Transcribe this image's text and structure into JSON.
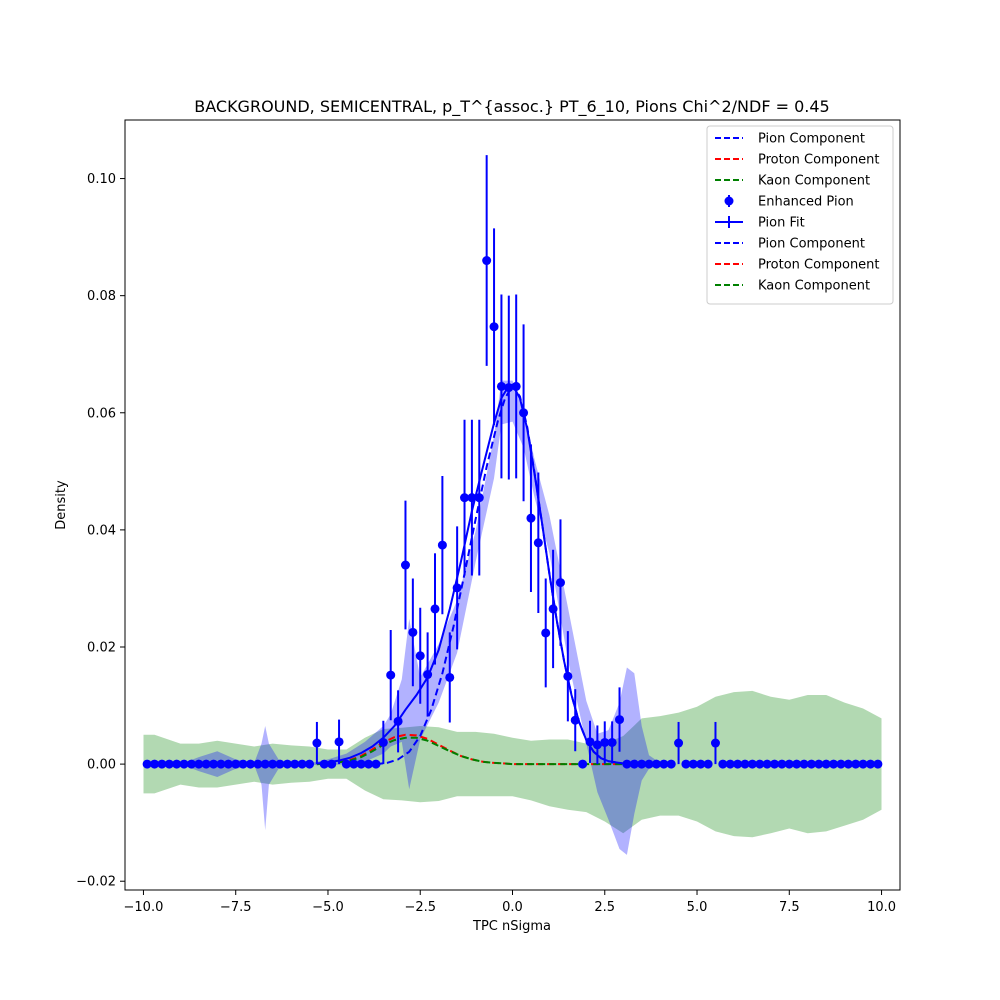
{
  "chart_data": {
    "type": "scatter",
    "title": "BACKGROUND, SEMICENTRAL, p_T^{assoc.} PT_6_10, Pions Chi^2/NDF = 0.45",
    "xlabel": "TPC nSigma",
    "ylabel": "Density",
    "xlim": [
      -10.5,
      10.5
    ],
    "ylim": [
      -0.0215,
      0.11
    ],
    "xticks": [
      -10.0,
      -7.5,
      -5.0,
      -2.5,
      0.0,
      2.5,
      5.0,
      7.5,
      10.0
    ],
    "xtick_labels": [
      "−10.0",
      "−7.5",
      "−5.0",
      "−2.5",
      "0.0",
      "2.5",
      "5.0",
      "7.5",
      "10.0"
    ],
    "yticks": [
      -0.02,
      0.0,
      0.02,
      0.04,
      0.06,
      0.08,
      0.1
    ],
    "ytick_labels": [
      "−0.02",
      "0.00",
      "0.02",
      "0.04",
      "0.06",
      "0.08",
      "0.10"
    ],
    "grid": false,
    "legend_placement": "top-right",
    "legend": [
      {
        "label": "Pion Component",
        "style": "dashed",
        "color": "#0000ff"
      },
      {
        "label": "Proton Component",
        "style": "dashed",
        "color": "#ff0000"
      },
      {
        "label": "Kaon Component",
        "style": "dashed",
        "color": "#008000"
      },
      {
        "label": "Enhanced Pion",
        "style": "errorbar-marker",
        "color": "#0000ff"
      },
      {
        "label": "Pion Fit",
        "style": "line-errorbar",
        "color": "#0000ff"
      },
      {
        "label": "Pion Component",
        "style": "dashed",
        "color": "#0000ff"
      },
      {
        "label": "Proton Component",
        "style": "dashed",
        "color": "#ff0000"
      },
      {
        "label": "Kaon Component",
        "style": "dashed",
        "color": "#008000"
      }
    ],
    "colors": {
      "pion": "#0000ff",
      "proton": "#ff0000",
      "kaon": "#008000",
      "pion_band": "#0000ff",
      "kaon_band": "#008000"
    },
    "enhanced_pion": {
      "name": "Enhanced Pion",
      "x": [
        -9.9,
        -9.7,
        -9.5,
        -9.3,
        -9.1,
        -8.9,
        -8.7,
        -8.5,
        -8.3,
        -8.1,
        -7.9,
        -7.7,
        -7.5,
        -7.3,
        -7.1,
        -6.9,
        -6.7,
        -6.5,
        -6.3,
        -6.1,
        -5.9,
        -5.7,
        -5.5,
        -5.3,
        -5.1,
        -4.9,
        -4.7,
        -4.5,
        -4.3,
        -4.1,
        -3.9,
        -3.7,
        -3.5,
        -3.3,
        -3.1,
        -2.9,
        -2.7,
        -2.5,
        -2.3,
        -2.1,
        -1.9,
        -1.7,
        -1.5,
        -1.3,
        -1.1,
        -0.9,
        -0.7,
        -0.5,
        -0.3,
        -0.1,
        0.1,
        0.3,
        0.5,
        0.7,
        0.9,
        1.1,
        1.3,
        1.5,
        1.7,
        1.9,
        2.1,
        2.3,
        2.5,
        2.7,
        2.9,
        3.1,
        3.3,
        3.5,
        3.7,
        3.9,
        4.1,
        4.3,
        4.5,
        4.7,
        4.9,
        5.1,
        5.3,
        5.5,
        5.7,
        5.9,
        6.1,
        6.3,
        6.5,
        6.7,
        6.9,
        7.1,
        7.3,
        7.5,
        7.7,
        7.9,
        8.1,
        8.3,
        8.5,
        8.7,
        8.9,
        9.1,
        9.3,
        9.5,
        9.7,
        9.9
      ],
      "y": [
        0,
        0,
        0,
        0,
        0,
        0,
        0,
        0,
        0,
        0,
        0,
        0,
        0,
        0,
        0,
        0,
        0,
        0,
        0,
        0,
        0,
        0,
        0,
        0.0036,
        0,
        0,
        0.0038,
        0,
        0,
        0,
        0,
        0,
        0.0037,
        0.0152,
        0.0073,
        0.034,
        0.0225,
        0.0185,
        0.0153,
        0.0265,
        0.0374,
        0.0148,
        0.0301,
        0.0455,
        0.0455,
        0.0455,
        0.086,
        0.0747,
        0.0645,
        0.0643,
        0.0645,
        0.06,
        0.042,
        0.0378,
        0.0224,
        0.0265,
        0.031,
        0.015,
        0.0075,
        0,
        0.0038,
        0.0033,
        0.0037,
        0.0037,
        0.0076,
        0,
        0,
        0,
        0,
        0,
        0,
        0,
        0.0036,
        0,
        0,
        0,
        0,
        0.0036,
        0,
        0,
        0,
        0,
        0,
        0,
        0,
        0,
        0,
        0,
        0,
        0,
        0,
        0,
        0,
        0,
        0,
        0,
        0,
        0,
        0,
        0
      ],
      "yerr": [
        0,
        0,
        0,
        0,
        0,
        0,
        0,
        0,
        0,
        0,
        0,
        0,
        0,
        0,
        0,
        0,
        0,
        0,
        0,
        0,
        0,
        0,
        0,
        0.0036,
        0,
        0,
        0.0038,
        0,
        0,
        0,
        0,
        0,
        0.0037,
        0.0077,
        0.0053,
        0.011,
        0.0092,
        0.0082,
        0.0072,
        0.0095,
        0.0118,
        0.0077,
        0.0105,
        0.0133,
        0.0133,
        0.0133,
        0.018,
        0.0168,
        0.0157,
        0.0157,
        0.0157,
        0.0151,
        0.0126,
        0.012,
        0.0093,
        0.0101,
        0.0108,
        0.0077,
        0.0053,
        0,
        0.0036,
        0.0033,
        0.0036,
        0.0036,
        0.0055,
        0,
        0,
        0,
        0,
        0,
        0,
        0,
        0.0036,
        0,
        0,
        0,
        0,
        0.0036,
        0,
        0,
        0,
        0,
        0,
        0,
        0,
        0,
        0,
        0,
        0,
        0,
        0,
        0,
        0,
        0,
        0,
        0,
        0,
        0,
        0,
        0
      ]
    },
    "pion_fit": {
      "name": "Pion Fit",
      "x": [
        -5.3,
        -5.0,
        -4.7,
        -4.4,
        -4.1,
        -3.8,
        -3.5,
        -3.2,
        -2.9,
        -2.6,
        -2.3,
        -2.0,
        -1.7,
        -1.4,
        -1.1,
        -0.8,
        -0.5,
        -0.3,
        -0.1,
        0.0,
        0.2,
        0.4,
        0.6,
        0.8,
        1.0,
        1.2,
        1.4,
        1.6,
        1.8,
        2.0,
        2.2,
        2.4,
        2.6,
        3.0,
        3.3
      ],
      "y": [
        0.0001,
        0.0003,
        0.0006,
        0.0011,
        0.0019,
        0.003,
        0.0045,
        0.0065,
        0.0093,
        0.0118,
        0.0148,
        0.0195,
        0.0265,
        0.0345,
        0.0432,
        0.0508,
        0.0582,
        0.0625,
        0.0646,
        0.0648,
        0.0625,
        0.0572,
        0.0495,
        0.0412,
        0.0325,
        0.0245,
        0.0175,
        0.0118,
        0.0073,
        0.0041,
        0.0021,
        0.001,
        0.0005,
        0.0001,
        0.0
      ]
    },
    "pion_component": {
      "name": "Pion Component",
      "x": [
        -3.7,
        -3.4,
        -3.1,
        -2.8,
        -2.5,
        -2.2,
        -1.9,
        -1.6,
        -1.3,
        -1.0,
        -0.7,
        -0.4,
        -0.2,
        0.0,
        0.2,
        0.4,
        0.6,
        0.8,
        1.0,
        1.2,
        1.4,
        1.6,
        1.8,
        2.0,
        2.2,
        2.4,
        2.6,
        3.0,
        3.3
      ],
      "y": [
        0.0,
        0.0002,
        0.0008,
        0.0021,
        0.0048,
        0.0093,
        0.0155,
        0.0235,
        0.0325,
        0.0418,
        0.0508,
        0.0585,
        0.0625,
        0.0646,
        0.0628,
        0.0575,
        0.0497,
        0.0412,
        0.0325,
        0.0245,
        0.0175,
        0.0118,
        0.0073,
        0.0041,
        0.0021,
        0.001,
        0.0005,
        0.0001,
        0.0
      ]
    },
    "proton_component": {
      "name": "Proton Component",
      "x": [
        -5.3,
        -5.0,
        -4.7,
        -4.4,
        -4.1,
        -3.8,
        -3.5,
        -3.2,
        -2.9,
        -2.6,
        -2.3,
        -2.0,
        -1.7,
        -1.4,
        -1.1,
        -0.8,
        -0.5,
        -0.2,
        0.0,
        0.5,
        1.0,
        1.5,
        2.0,
        2.5,
        3.0,
        3.3
      ],
      "y": [
        0.0,
        0.0001,
        0.0003,
        0.0007,
        0.0014,
        0.0025,
        0.0037,
        0.0046,
        0.005,
        0.0049,
        0.0043,
        0.0033,
        0.0023,
        0.0014,
        0.0008,
        0.0004,
        0.0002,
        0.0001,
        0.0,
        0.0,
        0.0,
        0.0,
        0.0,
        0.0,
        0.0,
        0.0
      ]
    },
    "kaon_component": {
      "name": "Kaon Component",
      "x": [
        -5.3,
        -5.0,
        -4.7,
        -4.4,
        -4.1,
        -3.8,
        -3.5,
        -3.2,
        -2.9,
        -2.6,
        -2.3,
        -2.0,
        -1.7,
        -1.4,
        -1.1,
        -0.8,
        -0.5,
        -0.2,
        0.0,
        0.5,
        1.0,
        1.5,
        2.0,
        2.5,
        3.0,
        3.3
      ],
      "y": [
        0.0,
        0.0001,
        0.0003,
        0.0006,
        0.0012,
        0.0022,
        0.0033,
        0.0041,
        0.0045,
        0.0045,
        0.004,
        0.0031,
        0.0022,
        0.0014,
        0.0008,
        0.0004,
        0.0002,
        0.0001,
        0.0,
        0.0,
        0.0,
        0.0,
        0.0,
        0.0,
        0.0,
        0.0
      ]
    },
    "pion_fit_band": {
      "x": [
        -10.0,
        -9.0,
        -8.5,
        -8.0,
        -7.5,
        -7.0,
        -6.8,
        -6.7,
        -6.6,
        -6.3,
        -6.0,
        -5.5,
        -5.3,
        -5.0,
        -4.5,
        -4.0,
        -3.5,
        -3.3,
        -3.0,
        -2.8,
        -2.5,
        -2.0,
        -1.5,
        -1.0,
        -0.5,
        -0.3,
        0.0,
        0.3,
        0.6,
        1.0,
        1.5,
        2.0,
        2.3,
        2.6,
        2.9,
        3.1,
        3.3,
        3.5,
        3.7,
        4.0,
        4.5,
        5.0,
        6.0,
        7.0,
        8.0,
        10.0
      ],
      "upper": [
        0.0,
        0.0,
        0.0012,
        0.0022,
        0.0008,
        0.0002,
        0.0035,
        0.0065,
        0.0035,
        0.0004,
        0.0,
        0.0002,
        0.0004,
        0.0008,
        0.0018,
        0.0038,
        0.0065,
        0.0085,
        0.0145,
        0.0248,
        0.0148,
        0.0205,
        0.028,
        0.0398,
        0.056,
        0.0655,
        0.0655,
        0.0605,
        0.052,
        0.0425,
        0.0268,
        0.0108,
        0.0052,
        0.0058,
        0.0105,
        0.0165,
        0.0155,
        0.0065,
        0.0015,
        0.0002,
        0.0,
        0.0,
        0.0,
        0.0,
        0.0,
        0.0
      ],
      "lower": [
        0.0,
        0.0,
        -0.0012,
        -0.0022,
        -0.0008,
        -0.0002,
        -0.0035,
        -0.0113,
        -0.0035,
        -0.0004,
        0.0,
        0.0,
        -0.0002,
        -0.0002,
        0.0,
        0.0004,
        0.0018,
        0.003,
        0.0038,
        -0.0043,
        0.0042,
        0.0105,
        0.019,
        0.0345,
        0.0488,
        0.058,
        0.0585,
        0.054,
        0.0455,
        0.036,
        0.0178,
        0.0035,
        -0.0048,
        -0.0095,
        -0.0145,
        -0.0155,
        -0.0085,
        -0.0028,
        -0.0008,
        -0.0001,
        0.0,
        0.0,
        0.0,
        0.0,
        0.0,
        0.0
      ]
    },
    "kaon_band": {
      "x": [
        -10.0,
        -9.7,
        -9.0,
        -8.5,
        -8.0,
        -7.5,
        -7.0,
        -6.5,
        -6.0,
        -5.5,
        -5.0,
        -4.5,
        -4.0,
        -3.5,
        -3.0,
        -2.5,
        -2.0,
        -1.5,
        -1.0,
        -0.5,
        0.0,
        0.5,
        1.0,
        1.5,
        2.0,
        2.5,
        3.0,
        3.5,
        4.0,
        4.5,
        5.0,
        5.5,
        6.0,
        6.5,
        7.0,
        7.5,
        8.0,
        8.5,
        9.0,
        9.5,
        10.0
      ],
      "upper": [
        0.005,
        0.005,
        0.0035,
        0.0035,
        0.004,
        0.0035,
        0.003,
        0.0035,
        0.0032,
        0.003,
        0.0025,
        0.0025,
        0.0045,
        0.006,
        0.0062,
        0.0065,
        0.0063,
        0.0055,
        0.0055,
        0.0052,
        0.0045,
        0.004,
        0.0042,
        0.0042,
        0.0035,
        0.0035,
        0.0048,
        0.0078,
        0.0082,
        0.0088,
        0.0098,
        0.0115,
        0.0123,
        0.0125,
        0.0115,
        0.011,
        0.0118,
        0.0118,
        0.0105,
        0.0095,
        0.0078
      ],
      "lower": [
        -0.005,
        -0.005,
        -0.0035,
        -0.004,
        -0.004,
        -0.0035,
        -0.003,
        -0.0035,
        -0.0032,
        -0.003,
        -0.0025,
        -0.0025,
        -0.0045,
        -0.006,
        -0.0062,
        -0.0065,
        -0.0063,
        -0.0055,
        -0.0055,
        -0.0055,
        -0.0055,
        -0.0062,
        -0.0072,
        -0.0078,
        -0.0082,
        -0.0098,
        -0.0118,
        -0.0095,
        -0.0088,
        -0.0088,
        -0.0098,
        -0.0115,
        -0.0123,
        -0.0125,
        -0.0118,
        -0.011,
        -0.0118,
        -0.0115,
        -0.0105,
        -0.0095,
        -0.0078
      ]
    }
  }
}
